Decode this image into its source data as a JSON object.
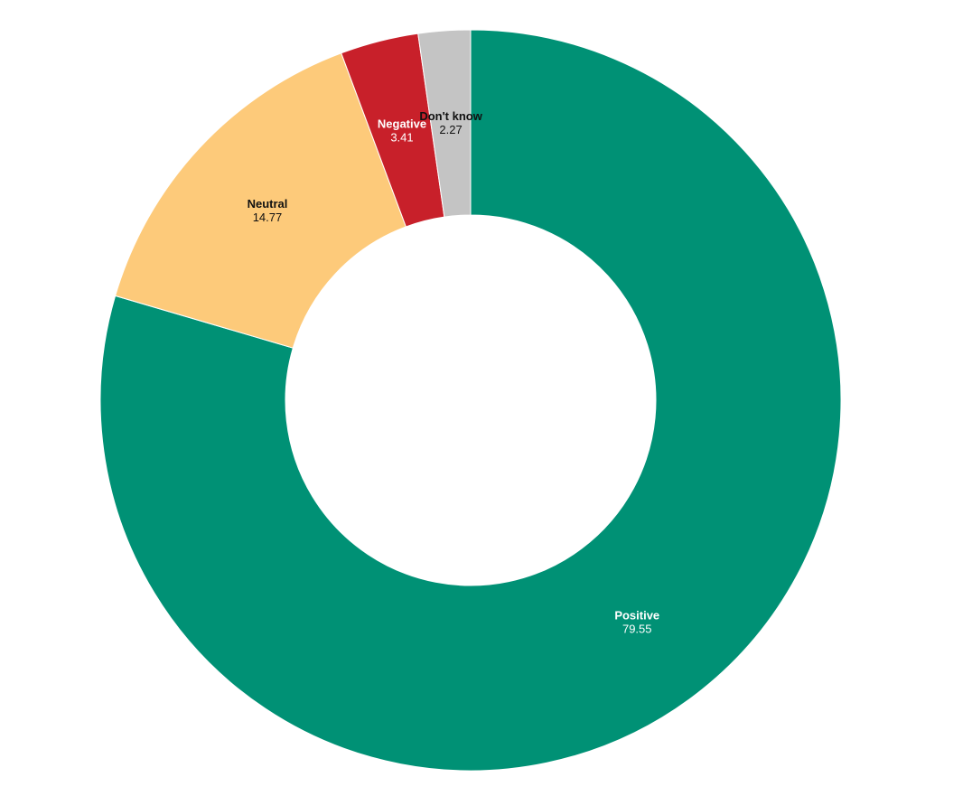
{
  "chart_data": {
    "type": "donut",
    "categories": [
      "Positive",
      "Neutral",
      "Negative",
      "Don't know"
    ],
    "values": [
      79.55,
      14.77,
      3.41,
      2.27
    ],
    "colors": [
      "#009175",
      "#fdca7a",
      "#c8202a",
      "#c4c4c4"
    ]
  }
}
